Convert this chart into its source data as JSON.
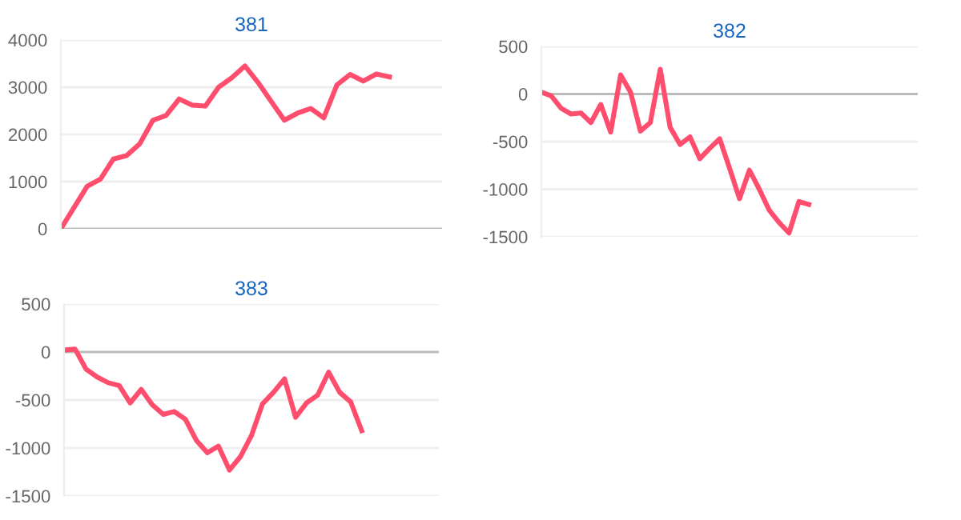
{
  "chart_data": [
    {
      "type": "line",
      "title": "381",
      "categories": [
        null,
        null,
        null,
        null,
        null,
        null,
        null,
        null,
        null,
        null,
        null,
        null,
        null,
        null,
        null,
        null,
        null,
        null,
        null,
        null,
        null,
        null,
        null,
        null,
        null,
        null,
        null,
        null,
        null,
        null
      ],
      "series": [
        {
          "color": "#ff4d6d",
          "values": [
            0,
            450,
            900,
            1050,
            1480,
            1550,
            1800,
            2300,
            2400,
            2750,
            2620,
            2600,
            3000,
            3200,
            3450,
            3100,
            2700,
            2300,
            2450,
            2550,
            2350,
            3050,
            3270,
            3130,
            3280,
            3220,
            null,
            null,
            null,
            null
          ]
        }
      ],
      "ylim": [
        0,
        4000
      ],
      "yticks": [
        0,
        1000,
        2000,
        3000,
        4000
      ],
      "grid": "y",
      "tick_labels": "y",
      "legend": false,
      "marker": "none",
      "line_style": "solid"
    },
    {
      "type": "line",
      "title": "382",
      "categories": [
        null,
        null,
        null,
        null,
        null,
        null,
        null,
        null,
        null,
        null,
        null,
        null,
        null,
        null,
        null,
        null,
        null,
        null,
        null,
        null,
        null,
        null,
        null,
        null,
        null,
        null,
        null,
        null,
        null,
        null,
        null,
        null,
        null,
        null,
        null,
        null,
        null,
        null,
        null
      ],
      "series": [
        {
          "color": "#ff4d6d",
          "values": [
            20,
            -20,
            -150,
            -210,
            -200,
            -300,
            -110,
            -400,
            200,
            20,
            -390,
            -300,
            260,
            -350,
            -530,
            -450,
            -680,
            -570,
            -470,
            -780,
            -1100,
            -800,
            -1000,
            -1220,
            -1350,
            -1460,
            -1130,
            -1160,
            null,
            null,
            null,
            null,
            null,
            null,
            null,
            null,
            null,
            null,
            null
          ]
        }
      ],
      "ylim": [
        -1500,
        500
      ],
      "yticks": [
        -1500,
        -1000,
        -500,
        0,
        500
      ],
      "grid": "y",
      "tick_labels": "y",
      "legend": false,
      "marker": "none",
      "line_style": "solid"
    },
    {
      "type": "line",
      "title": "383",
      "categories": [
        null,
        null,
        null,
        null,
        null,
        null,
        null,
        null,
        null,
        null,
        null,
        null,
        null,
        null,
        null,
        null,
        null,
        null,
        null,
        null,
        null,
        null,
        null,
        null,
        null,
        null,
        null,
        null,
        null,
        null,
        null,
        null,
        null,
        null,
        null
      ],
      "series": [
        {
          "color": "#ff4d6d",
          "values": [
            20,
            30,
            -180,
            -260,
            -320,
            -350,
            -530,
            -390,
            -550,
            -650,
            -620,
            -700,
            -920,
            -1050,
            -980,
            -1230,
            -1090,
            -870,
            -540,
            -420,
            -280,
            -680,
            -530,
            -450,
            -210,
            -420,
            -520,
            -820,
            null,
            null,
            null,
            null,
            null,
            null,
            null
          ]
        }
      ],
      "ylim": [
        -1500,
        500
      ],
      "yticks": [
        -1500,
        -1000,
        -500,
        0,
        500
      ],
      "grid": "y",
      "tick_labels": "y",
      "legend": false,
      "marker": "none",
      "line_style": "solid"
    }
  ]
}
